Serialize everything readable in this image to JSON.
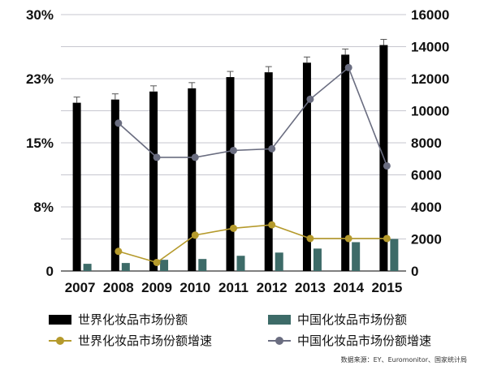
{
  "chart_data": {
    "type": "bar",
    "categories": [
      "2007",
      "2008",
      "2009",
      "2010",
      "2011",
      "2012",
      "2013",
      "2014",
      "2015"
    ],
    "left_axis": {
      "ticks": [
        "30%",
        "23%",
        "15%",
        "8%",
        "0"
      ],
      "range": [
        0,
        30
      ]
    },
    "right_axis": {
      "ticks": [
        "16000",
        "14000",
        "12000",
        "10000",
        "8000",
        "6000",
        "4000",
        "2000",
        "0"
      ],
      "range": [
        0,
        16000
      ]
    },
    "series": [
      {
        "name": "世界化妆品市场份额",
        "kind": "bar",
        "axis": "right",
        "color": "#000000",
        "values": [
          10500,
          10700,
          11200,
          11400,
          12100,
          12400,
          13000,
          13500,
          14100
        ]
      },
      {
        "name": "中国化妆品市场份额",
        "kind": "bar",
        "axis": "right",
        "color": "#3d6b68",
        "values": [
          450,
          500,
          700,
          750,
          950,
          1150,
          1400,
          1800,
          2000
        ]
      },
      {
        "name": "世界化妆品市场份额增速",
        "kind": "line",
        "axis": "left",
        "color": "#b59a2c",
        "values": [
          null,
          2.3,
          1.0,
          4.2,
          5.0,
          5.4,
          3.8,
          3.8,
          3.8
        ]
      },
      {
        "name": "中国化妆品市场份额增速",
        "kind": "line",
        "axis": "left",
        "color": "#6a6d80",
        "values": [
          null,
          17.3,
          13.3,
          13.3,
          14.1,
          14.3,
          20.1,
          23.8,
          12.3
        ]
      }
    ],
    "grid": true,
    "legend_position": "bottom"
  },
  "source_note": "数据来源：EY、Euromonitor、国家统计局"
}
